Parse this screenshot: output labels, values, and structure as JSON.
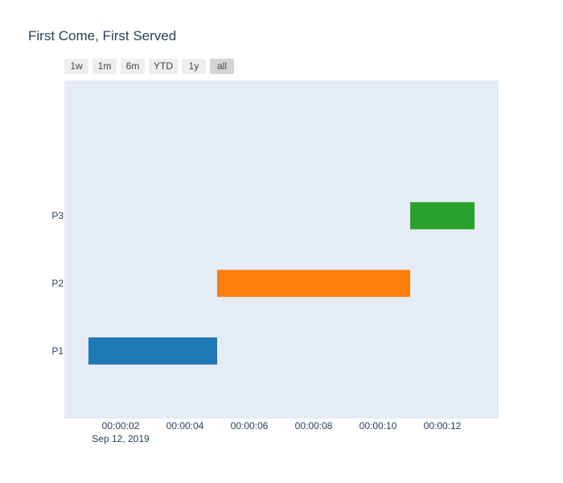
{
  "chart_data": {
    "type": "gantt",
    "title": "First Come, First Served",
    "range_buttons": [
      {
        "label": "1w",
        "active": false
      },
      {
        "label": "1m",
        "active": false
      },
      {
        "label": "6m",
        "active": false
      },
      {
        "label": "YTD",
        "active": false
      },
      {
        "label": "1y",
        "active": false
      },
      {
        "label": "all",
        "active": true
      }
    ],
    "x_date_label": "Sep 12, 2019",
    "xlim": [
      "00:00:00.25",
      "00:00:13.75"
    ],
    "x_ticks": [
      "00:00:02",
      "00:00:04",
      "00:00:06",
      "00:00:08",
      "00:00:10",
      "00:00:12"
    ],
    "y_categories": [
      "P1",
      "P2",
      "P3"
    ],
    "ylim": [
      -1.0,
      4.0
    ],
    "bar_half_height": 0.2,
    "tasks": [
      {
        "name": "P1",
        "start": "00:00:01",
        "finish": "00:00:05",
        "color": "#1f77b4"
      },
      {
        "name": "P2",
        "start": "00:00:05",
        "finish": "00:00:11",
        "color": "#ff7f0e"
      },
      {
        "name": "P3",
        "start": "00:00:11",
        "finish": "00:00:13",
        "color": "#2ca02c"
      }
    ],
    "plot_bgcolor": "#e5ecf6",
    "grid": false
  }
}
